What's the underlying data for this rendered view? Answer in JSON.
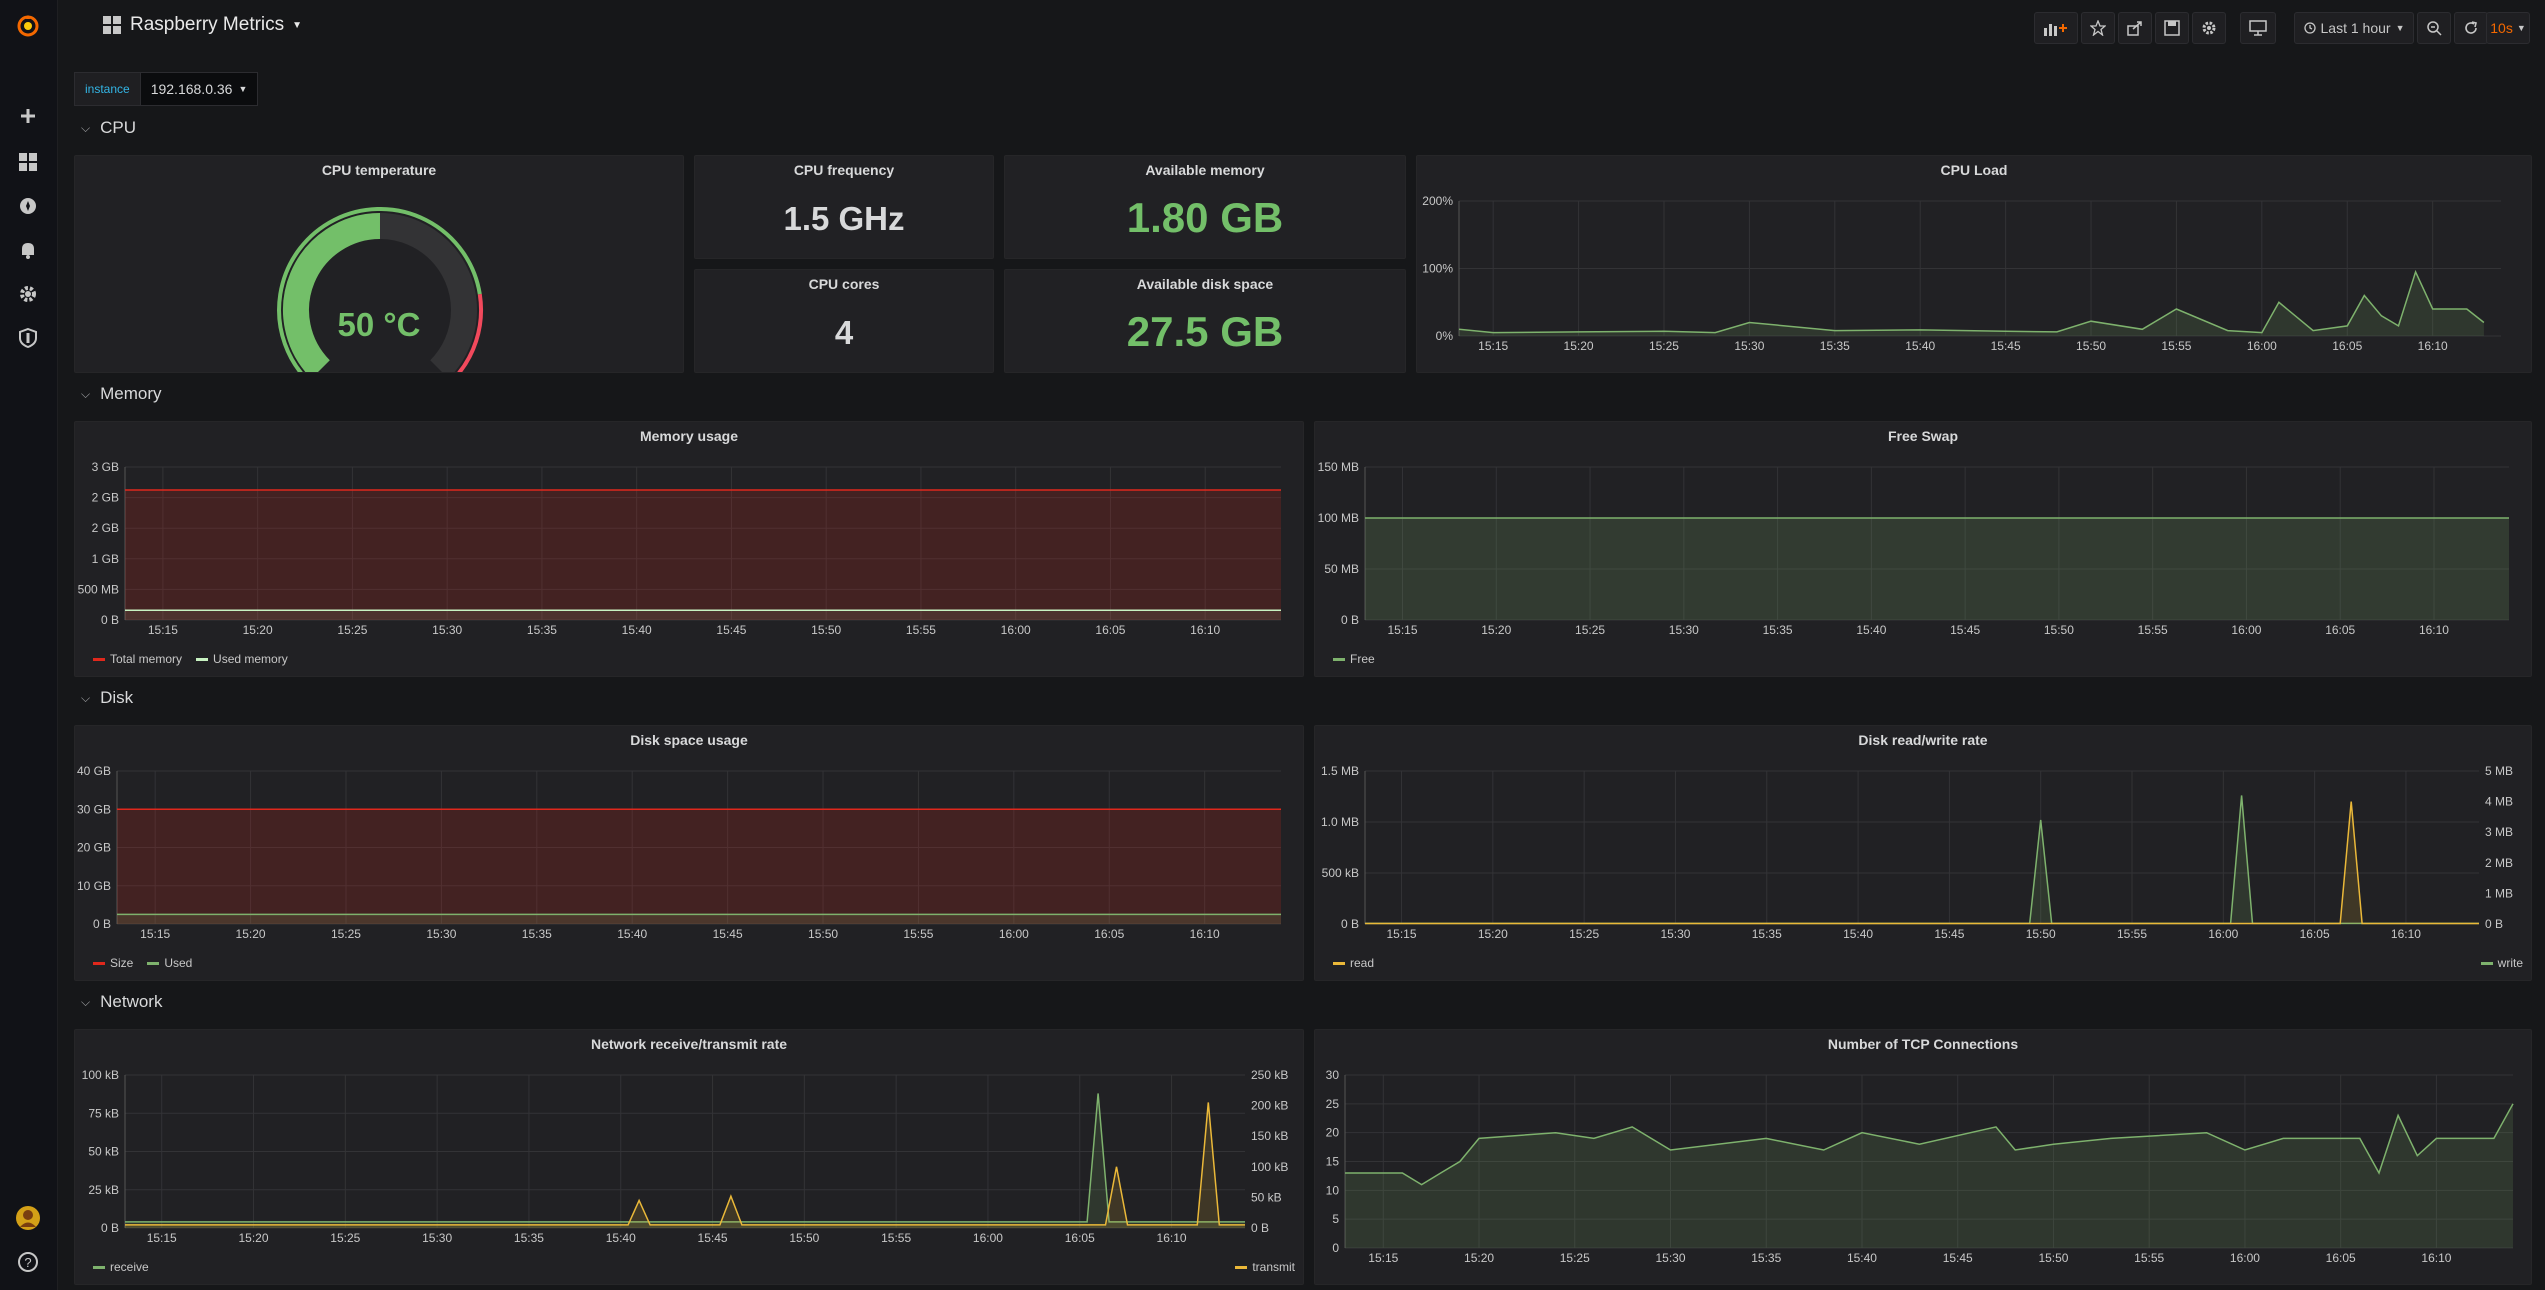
{
  "colors": {
    "green": "#7eb26d",
    "green_value": "#73bf69",
    "red": "#e02f44",
    "yellow": "#eab839",
    "threshold_red": "#e0281c",
    "accent_orange": "#f46800",
    "link_blue": "#33b5e5"
  },
  "sidebar": {
    "items": [
      {
        "name": "grafana-logo-icon"
      },
      {
        "name": "plus-icon"
      },
      {
        "name": "dashboards-icon"
      },
      {
        "name": "explore-compass-icon"
      },
      {
        "name": "alerting-bell-icon"
      },
      {
        "name": "configuration-gear-icon"
      },
      {
        "name": "server-admin-shield-icon"
      },
      {
        "name": "user-avatar-icon"
      },
      {
        "name": "help-icon"
      }
    ]
  },
  "header": {
    "title": "Raspberry Metrics",
    "time_range": "Last 1 hour",
    "refresh": "10s",
    "buttons": [
      "add-panel-icon",
      "star-icon",
      "share-icon",
      "save-icon",
      "settings-icon",
      "tv-mode-icon",
      "zoom-out-icon",
      "refresh-icon"
    ]
  },
  "variables": {
    "instance_label": "instance",
    "instance_value": "192.168.0.36"
  },
  "rows": {
    "cpu": "CPU",
    "memory": "Memory",
    "disk": "Disk",
    "network": "Network"
  },
  "time_ticks": [
    "15:15",
    "15:20",
    "15:25",
    "15:30",
    "15:35",
    "15:40",
    "15:45",
    "15:50",
    "15:55",
    "16:00",
    "16:05",
    "16:10"
  ],
  "panels": {
    "cpu_temperature": {
      "title": "CPU temperature",
      "value": "50 °C",
      "gauge_fraction": 0.5
    },
    "cpu_frequency": {
      "title": "CPU frequency",
      "value": "1.5 GHz"
    },
    "cpu_cores": {
      "title": "CPU cores",
      "value": "4"
    },
    "available_memory": {
      "title": "Available memory",
      "value": "1.80 GB"
    },
    "available_disk": {
      "title": "Available disk space",
      "value": "27.5 GB"
    },
    "cpu_load": {
      "title": "CPU Load"
    },
    "memory_usage": {
      "title": "Memory usage",
      "legend": [
        "Total memory",
        "Used memory"
      ]
    },
    "free_swap": {
      "title": "Free Swap",
      "legend": [
        "Free"
      ]
    },
    "disk_space": {
      "title": "Disk space usage",
      "legend": [
        "Size",
        "Used"
      ]
    },
    "disk_rw": {
      "title": "Disk read/write rate",
      "legend_left": "read",
      "legend_right": "write"
    },
    "network_rate": {
      "title": "Network receive/transmit rate",
      "legend_left": "receive",
      "legend_right": "transmit"
    },
    "tcp": {
      "title": "Number of TCP Connections"
    }
  },
  "chart_data": [
    {
      "id": "cpu_load",
      "type": "area",
      "title": "CPU Load",
      "x": [
        "15:13",
        "15:15",
        "15:20",
        "15:25",
        "15:28",
        "15:30",
        "15:35",
        "15:40",
        "15:45",
        "15:48",
        "15:50",
        "15:53",
        "15:55",
        "15:58",
        "16:00",
        "16:01",
        "16:03",
        "16:05",
        "16:06",
        "16:07",
        "16:08",
        "16:09",
        "16:10",
        "16:12",
        "16:13"
      ],
      "series": [
        {
          "values": [
            10,
            5,
            6,
            7,
            5,
            20,
            8,
            9,
            7,
            6,
            22,
            10,
            40,
            8,
            5,
            50,
            8,
            15,
            60,
            30,
            15,
            95,
            40,
            40,
            20
          ]
        }
      ],
      "yticks": [
        "0%",
        "100%",
        "200%"
      ],
      "ylim": [
        0,
        200
      ]
    },
    {
      "id": "memory_usage",
      "type": "line",
      "title": "Memory usage",
      "yticks": [
        "0 B",
        "500 MB",
        "1 GB",
        "2 GB",
        "2 GB",
        "3 GB"
      ],
      "ylim": [
        0,
        3
      ],
      "series": [
        {
          "name": "Total memory",
          "values": [
            2.55,
            2.55
          ]
        },
        {
          "name": "Used memory",
          "values": [
            0.19,
            0.2
          ]
        }
      ]
    },
    {
      "id": "free_swap",
      "type": "area",
      "title": "Free Swap",
      "yticks": [
        "0 B",
        "50 MB",
        "100 MB",
        "150 MB"
      ],
      "ylim": [
        0,
        150
      ],
      "series": [
        {
          "name": "Free",
          "values": [
            100,
            100
          ]
        }
      ]
    },
    {
      "id": "disk_space",
      "type": "area",
      "title": "Disk space usage",
      "yticks": [
        "0 B",
        "10 GB",
        "20 GB",
        "30 GB",
        "40 GB"
      ],
      "ylim": [
        0,
        40
      ],
      "series": [
        {
          "name": "Size",
          "values": [
            30,
            30
          ]
        },
        {
          "name": "Used",
          "values": [
            2.5,
            2.5
          ]
        }
      ]
    },
    {
      "id": "disk_rw",
      "type": "line",
      "title": "Disk read/write rate",
      "yticks_left": [
        "0 B",
        "500 kB",
        "1.0 MB",
        "1.5 MB"
      ],
      "yticks_right": [
        "0 B",
        "1 MB",
        "2 MB",
        "3 MB",
        "4 MB",
        "5 MB"
      ],
      "series": [
        {
          "name": "read",
          "axis": "left",
          "peaks": [
            {
              "x": "16:07",
              "y": 1.2
            }
          ]
        },
        {
          "name": "write",
          "axis": "right",
          "peaks": [
            {
              "x": "15:50",
              "y": 3.4
            },
            {
              "x": "16:01",
              "y": 4.2
            }
          ]
        }
      ]
    },
    {
      "id": "network_rate",
      "type": "line",
      "title": "Network receive/transmit rate",
      "yticks_left": [
        "0 B",
        "25 kB",
        "50 kB",
        "75 kB",
        "100 kB"
      ],
      "yticks_right": [
        "0 B",
        "50 kB",
        "100 kB",
        "150 kB",
        "200 kB",
        "250 kB"
      ],
      "series": [
        {
          "name": "receive",
          "axis": "left",
          "peaks": [
            {
              "x": "16:06",
              "y": 88
            }
          ]
        },
        {
          "name": "transmit",
          "axis": "right",
          "peaks": [
            {
              "x": "15:41",
              "y": 45
            },
            {
              "x": "15:46",
              "y": 52
            },
            {
              "x": "16:07",
              "y": 100
            },
            {
              "x": "16:12",
              "y": 205
            }
          ]
        }
      ]
    },
    {
      "id": "tcp",
      "type": "area",
      "title": "Number of TCP Connections",
      "yticks": [
        "0",
        "5",
        "10",
        "15",
        "20",
        "25",
        "30"
      ],
      "ylim": [
        0,
        30
      ],
      "x": [
        "15:13",
        "15:16",
        "15:17",
        "15:18",
        "15:19",
        "15:20",
        "15:24",
        "15:26",
        "15:28",
        "15:30",
        "15:35",
        "15:38",
        "15:40",
        "15:43",
        "15:47",
        "15:48",
        "15:50",
        "15:53",
        "15:58",
        "16:00",
        "16:02",
        "16:06",
        "16:07",
        "16:08",
        "16:09",
        "16:10",
        "16:13",
        "16:14"
      ],
      "series": [
        {
          "values": [
            13,
            13,
            11,
            13,
            15,
            19,
            20,
            19,
            21,
            17,
            19,
            17,
            20,
            18,
            21,
            17,
            18,
            19,
            20,
            17,
            19,
            19,
            13,
            23,
            16,
            19,
            19,
            25
          ]
        }
      ]
    }
  ]
}
